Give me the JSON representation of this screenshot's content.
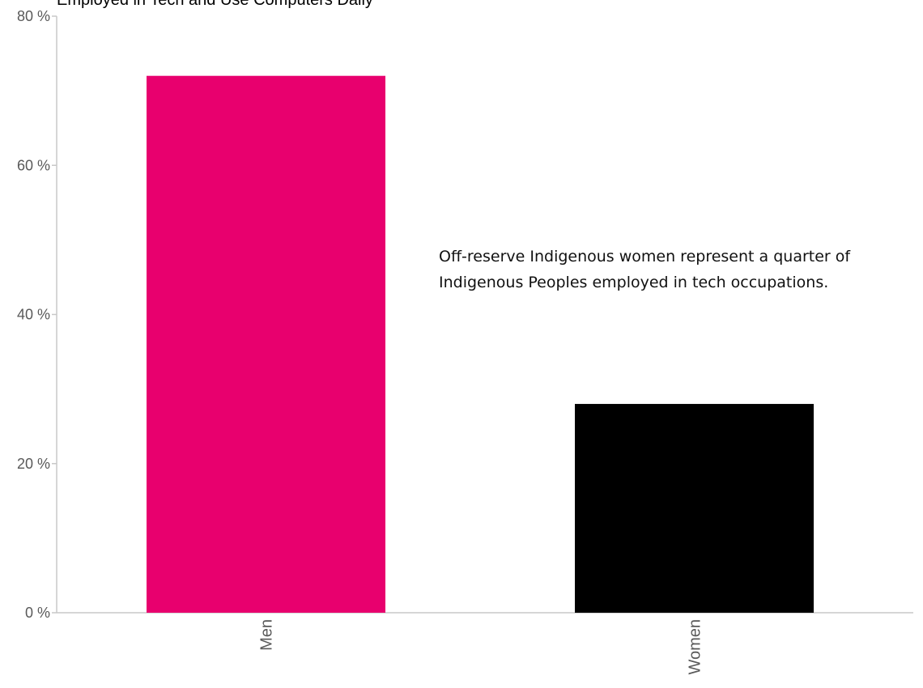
{
  "chart_data": {
    "type": "bar",
    "title": "Employed in Tech and Use Computers Daily",
    "categories": [
      "Men",
      "Women"
    ],
    "values": [
      72,
      28
    ],
    "colors": [
      "#e8006e",
      "#000000"
    ],
    "ylim": [
      0,
      80
    ],
    "yticks": [
      0,
      20,
      40,
      60,
      80
    ],
    "ytick_labels": [
      "0 %",
      "20 %",
      "40 %",
      "60 %",
      "80 %"
    ],
    "grid": false,
    "annotation": {
      "line1": "Off-reserve Indigenous women represent a quarter of",
      "line2": "Indigenous Peoples employed in tech occupations."
    }
  }
}
